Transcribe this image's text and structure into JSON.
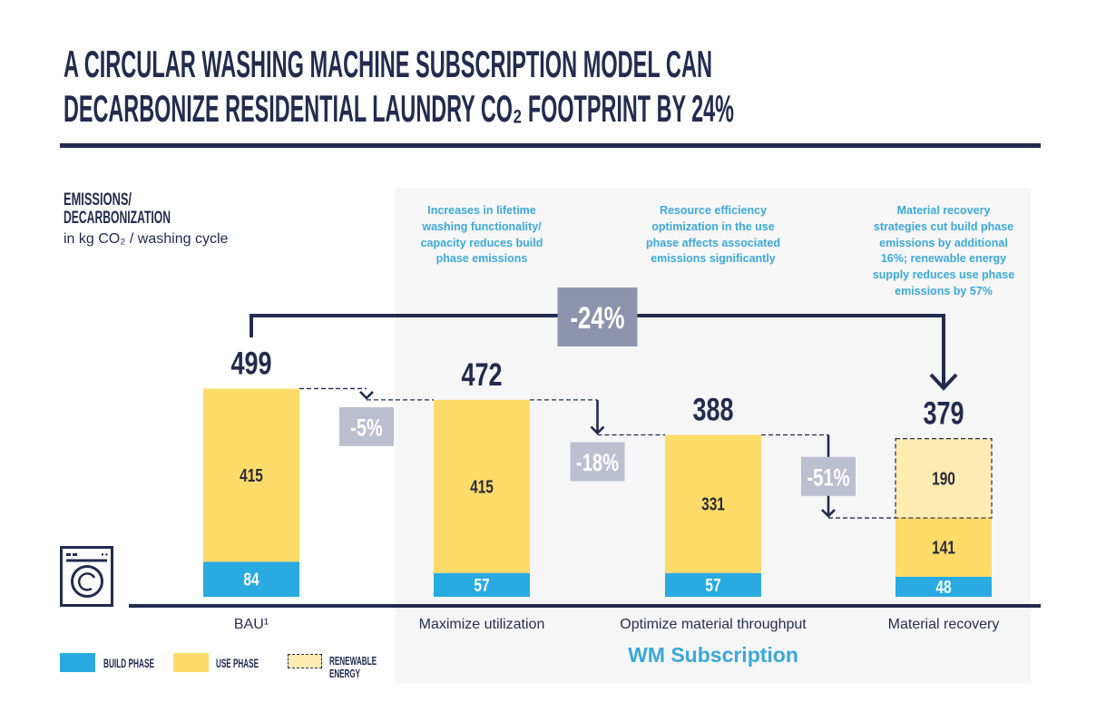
{
  "title": {
    "line1": "A CIRCULAR WASHING MACHINE SUBSCRIPTION MODEL CAN",
    "line2": "DECARBONIZE RESIDENTIAL LAUNDRY CO₂ FOOTPRINT BY 24%"
  },
  "axis_title": {
    "line1": "EMISSIONS/",
    "line2": "DECARBONIZATION",
    "unit": "in kg CO₂ / washing cycle"
  },
  "annotations": [
    "Increases in lifetime\nwashing functionality/\ncapacity reduces build\nphase emissions",
    "Resource efficiency\noptimization in the use\nphase affects associated\nemissions significantly",
    "Material recovery\nstrategies cut build phase\nemissions by additional\n16%; renewable energy\nsupply reduces use phase\nemissions by 57%"
  ],
  "group_label": "WM Subscription",
  "legend": {
    "items": [
      {
        "label": "BUILD PHASE"
      },
      {
        "label": "USE PHASE"
      },
      {
        "line1": "RENEWABLE",
        "line2": "ENERGY"
      }
    ]
  },
  "icons": {
    "category_icon": "washing-machine-icon"
  },
  "colors": {
    "navy": "#232b4e",
    "build": "#29abe2",
    "use": "#fddc6a",
    "renewable": "#feecb2",
    "annotation_text": "#3ea9da",
    "step_box": "#bcbfce",
    "overall_box": "#8e93ad",
    "panel": "#f6f6f7"
  },
  "chart_data": {
    "type": "bar",
    "stacked": true,
    "title": "A circular washing machine subscription model can decarbonize residential laundry CO₂ footprint by 24%",
    "xlabel": "",
    "ylabel": "Emissions/decarbonization in kg CO₂ / washing cycle",
    "categories": [
      "BAU¹",
      "Maximize utilization",
      "Optimize material throughput",
      "Material recovery"
    ],
    "series": [
      {
        "name": "Build phase",
        "values": [
          84,
          57,
          57,
          48
        ]
      },
      {
        "name": "Use phase",
        "values": [
          415,
          415,
          331,
          141
        ]
      },
      {
        "name": "Renewable energy",
        "values": [
          0,
          0,
          0,
          190
        ]
      }
    ],
    "totals": [
      499,
      472,
      388,
      379
    ],
    "step_changes": [
      "-5%",
      "-18%",
      "-51%"
    ],
    "overall_change": "-24%",
    "group": {
      "label": "WM Subscription",
      "categories": [
        "Maximize utilization",
        "Optimize material throughput",
        "Material recovery"
      ]
    },
    "legend": "bottom-left",
    "grid": false
  }
}
